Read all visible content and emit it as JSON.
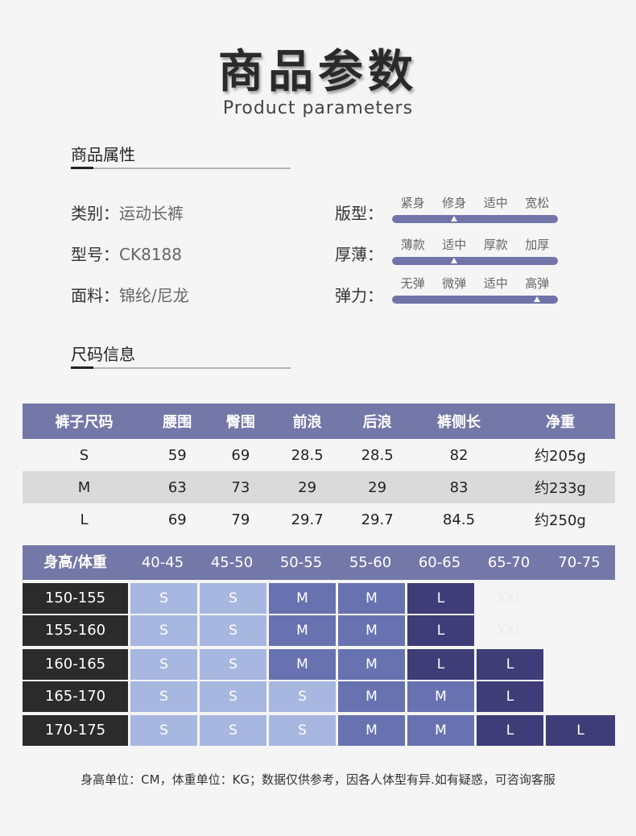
{
  "header": {
    "title": "商品参数",
    "subtitle": "Product parameters"
  },
  "attributes_section": {
    "title": "商品属性",
    "category": {
      "label": "类别：",
      "value": "运动长裤"
    },
    "model": {
      "label": "型号：",
      "value": "CK8188"
    },
    "fabric": {
      "label": "面料：",
      "value": "锦纶/尼龙"
    },
    "fit": {
      "label": "版型：",
      "options": [
        "紧身",
        "修身",
        "适中",
        "宽松"
      ],
      "selected_index": 1
    },
    "thickness": {
      "label": "厚薄：",
      "options": [
        "薄款",
        "适中",
        "厚款",
        "加厚"
      ],
      "selected_index": 1
    },
    "elasticity": {
      "label": "弹力：",
      "options": [
        "无弹",
        "微弹",
        "适中",
        "高弹"
      ],
      "selected_index": 3
    }
  },
  "size_section": {
    "title": "尺码信息"
  },
  "size_table": {
    "headers": [
      "裤子尺码",
      "腰围",
      "臀围",
      "前浪",
      "后浪",
      "裤侧长",
      "净重"
    ],
    "rows": [
      [
        "S",
        "59",
        "69",
        "28.5",
        "28.5",
        "82",
        "约205g"
      ],
      [
        "M",
        "63",
        "73",
        "29",
        "29",
        "83",
        "约233g"
      ],
      [
        "L",
        "69",
        "79",
        "29.7",
        "29.7",
        "84.5",
        "约250g"
      ]
    ]
  },
  "fit_chart": {
    "headers": [
      "身高/体重",
      "40-45",
      "45-50",
      "50-55",
      "55-60",
      "60-65",
      "65-70",
      "70-75"
    ],
    "rows": [
      {
        "height": "150-155",
        "cells": [
          "S",
          "S",
          "M",
          "M",
          "L",
          "XXL",
          ""
        ]
      },
      {
        "height": "155-160",
        "cells": [
          "S",
          "S",
          "M",
          "M",
          "L",
          "XXL",
          ""
        ]
      },
      {
        "height": "160-165",
        "cells": [
          "S",
          "S",
          "M",
          "M",
          "L",
          "L",
          ""
        ]
      },
      {
        "height": "165-170",
        "cells": [
          "S",
          "S",
          "S",
          "M",
          "M",
          "L",
          ""
        ]
      },
      {
        "height": "170-175",
        "cells": [
          "S",
          "S",
          "S",
          "M",
          "M",
          "L",
          "L"
        ]
      }
    ],
    "colors": {
      "S": "#a8b7e0",
      "M": "#6872b0",
      "L": "#3f3d78"
    }
  },
  "footnote": "身高单位：CM，体重单位：KG；数据仅供参考，因各人体型有异.如有疑惑，可咨询客服"
}
